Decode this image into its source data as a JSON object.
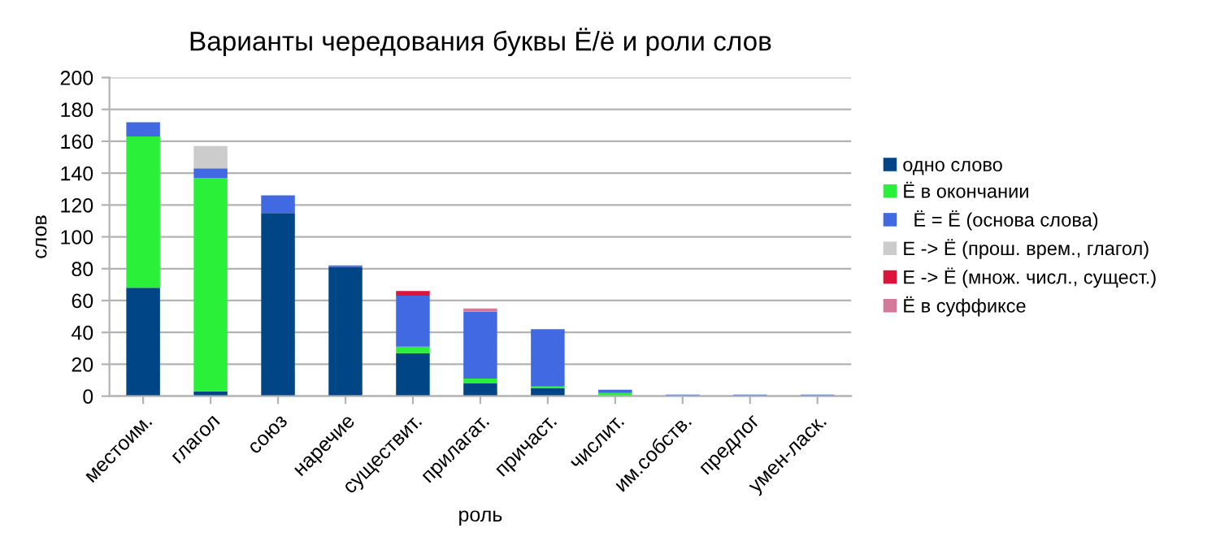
{
  "chart_data": {
    "type": "bar",
    "stacked": true,
    "title": "Варианты чередования буквы Ё/ё и роли слов",
    "xlabel": "роль",
    "ylabel": "слов",
    "categories": [
      "местоим.",
      "глагол",
      "союз",
      "наречие",
      "существит.",
      "прилагат.",
      "причаст.",
      "числит.",
      "им.собств.",
      "предлог",
      "умен-ласк."
    ],
    "series": [
      {
        "name": "одно слово",
        "color": "#004586",
        "values": [
          68,
          3,
          115,
          81,
          27,
          8,
          5,
          0,
          0,
          0,
          0
        ]
      },
      {
        "name": "Ё в окончании",
        "color": "#2af03a",
        "values": [
          95,
          134,
          0,
          0,
          4,
          3,
          1,
          2,
          0,
          0,
          0
        ]
      },
      {
        "name": "  Ё = Ё (основа слова)",
        "color": "#4169e1",
        "values": [
          9,
          6,
          11,
          1,
          32,
          42,
          36,
          2,
          1,
          1,
          1
        ]
      },
      {
        "name": "Е -> Ё (прош. врем., глагол)",
        "color": "#cccccc",
        "values": [
          0,
          14,
          0,
          0,
          0,
          0,
          0,
          0,
          0,
          0,
          0
        ]
      },
      {
        "name": "Е -> Ё (множ. числ., сущест.)",
        "color": "#dc143c",
        "values": [
          0,
          0,
          0,
          0,
          3,
          0,
          0,
          0,
          0,
          0,
          0
        ]
      },
      {
        "name": "Ё в суффиксе",
        "color": "#d4799a",
        "values": [
          0,
          0,
          0,
          0,
          0,
          2,
          0,
          0,
          0,
          0,
          0
        ]
      }
    ],
    "ylim": [
      0,
      200
    ],
    "yticks": [
      0,
      20,
      40,
      60,
      80,
      100,
      120,
      140,
      160,
      180,
      200
    ],
    "grid": "y",
    "legend": "right"
  }
}
